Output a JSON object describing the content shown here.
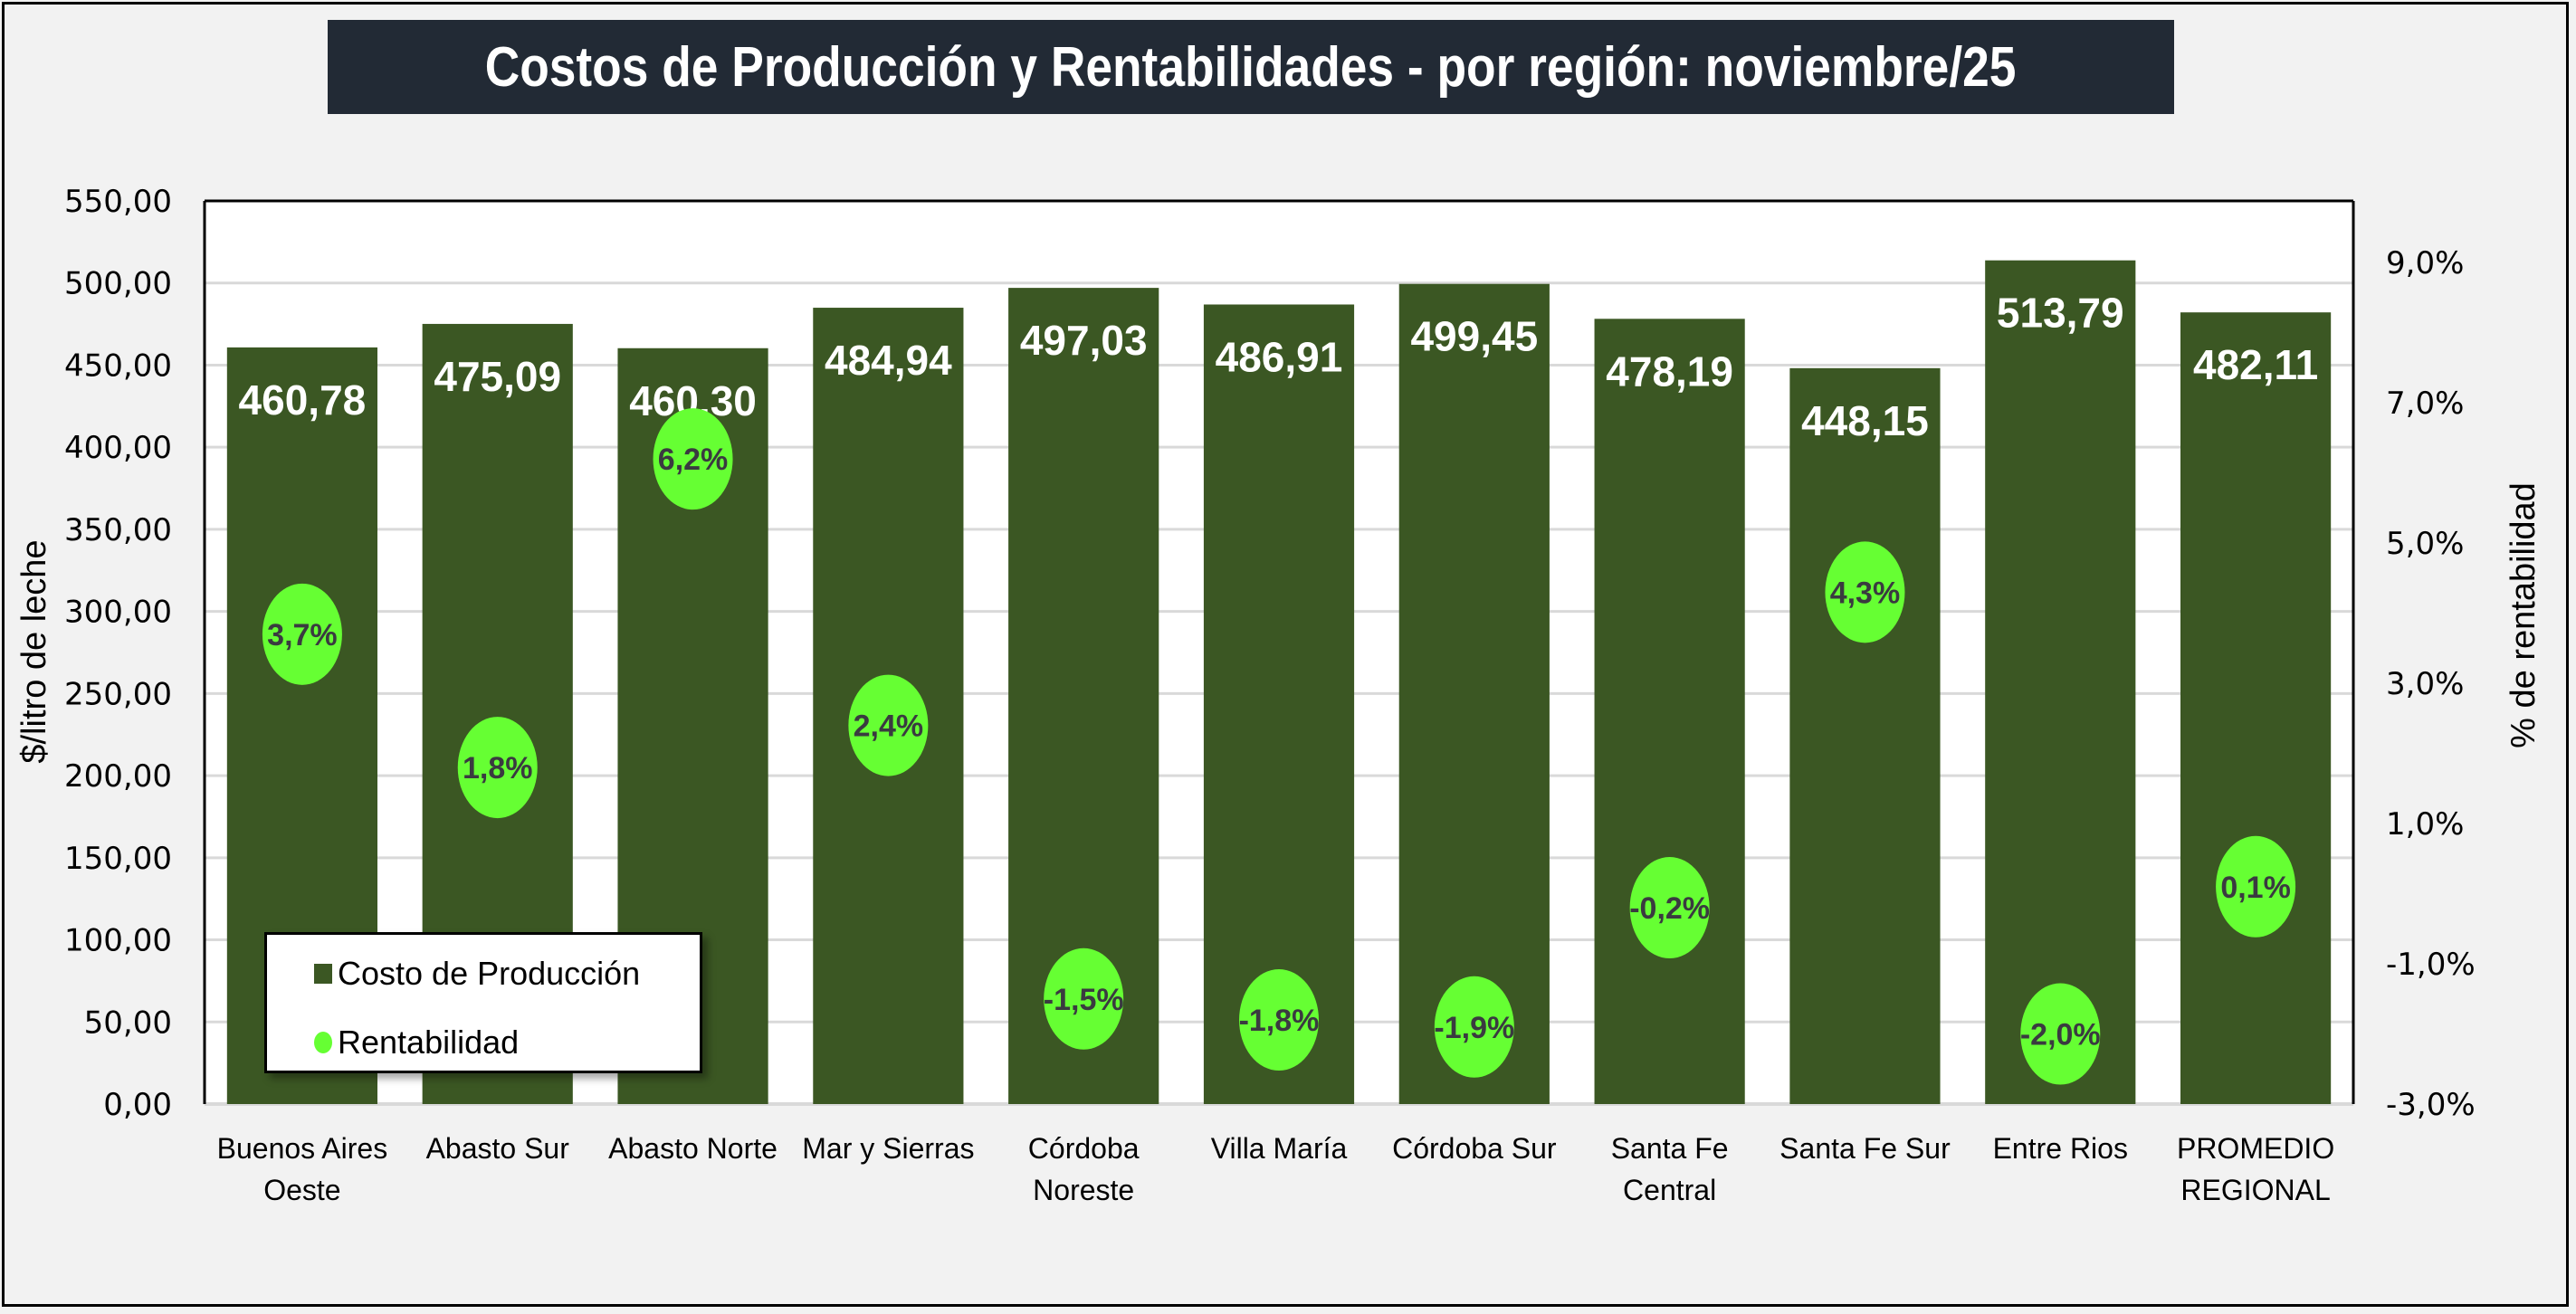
{
  "title": "Costos de Producción y Rentabilidades - por región: noviembre/25",
  "colors": {
    "bar": "#3b5723",
    "circle": "#66ff33",
    "title_bg": "#222a35",
    "gridline": "#d9d9d9"
  },
  "legend": {
    "items": [
      {
        "label": "Costo de Producción",
        "marker": "square"
      },
      {
        "label": "Rentabilidad",
        "marker": "circle"
      }
    ]
  },
  "chart_data": {
    "type": "bar",
    "title": "Costos de Producción y Rentabilidades - por región: noviembre/25",
    "categories": [
      [
        "Buenos Aires",
        "Oeste"
      ],
      [
        "Abasto Sur"
      ],
      [
        "Abasto Norte"
      ],
      [
        "Mar y Sierras"
      ],
      [
        "Córdoba",
        "Noreste"
      ],
      [
        "Villa María"
      ],
      [
        "Córdoba Sur"
      ],
      [
        "Santa Fe",
        "Central"
      ],
      [
        "Santa Fe Sur"
      ],
      [
        "Entre Rios"
      ],
      [
        "PROMEDIO",
        "REGIONAL"
      ]
    ],
    "series": [
      {
        "name": "Costo de Producción",
        "type": "bar",
        "axis": "left",
        "values": [
          460.78,
          475.09,
          460.3,
          484.94,
          497.03,
          486.91,
          499.45,
          478.19,
          448.15,
          513.79,
          482.11
        ],
        "labels": [
          "460,78",
          "475,09",
          "460,30",
          "484,94",
          "497,03",
          "486,91",
          "499,45",
          "478,19",
          "448,15",
          "513,79",
          "482,11"
        ]
      },
      {
        "name": "Rentabilidad",
        "type": "scatter",
        "axis": "right",
        "values": [
          3.7,
          1.8,
          6.2,
          2.4,
          -1.5,
          -1.8,
          -1.9,
          -0.2,
          4.3,
          -2.0,
          0.1
        ],
        "labels": [
          "3,7%",
          "1,8%",
          "6,2%",
          "2,4%",
          "-1,5%",
          "-1,8%",
          "-1,9%",
          "-0,2%",
          "4,3%",
          "-2,0%",
          "0,1%"
        ]
      }
    ],
    "ylabel": "$/litro de leche",
    "y2label": "% de rentabilidad",
    "ylim": [
      0,
      550
    ],
    "y2lim": [
      -3,
      9.88
    ],
    "yticks": [
      "0,00",
      "50,00",
      "100,00",
      "150,00",
      "200,00",
      "250,00",
      "300,00",
      "350,00",
      "400,00",
      "450,00",
      "500,00",
      "550,00"
    ],
    "ytick_values": [
      0,
      50,
      100,
      150,
      200,
      250,
      300,
      350,
      400,
      450,
      500,
      550
    ],
    "y2ticks": [
      "-3,0%",
      "-1,0%",
      "1,0%",
      "3,0%",
      "5,0%",
      "7,0%",
      "9,0%"
    ],
    "y2tick_values": [
      -3,
      -1,
      1,
      3,
      5,
      7,
      9
    ],
    "grid": true,
    "legend_position": "bottom-left"
  }
}
